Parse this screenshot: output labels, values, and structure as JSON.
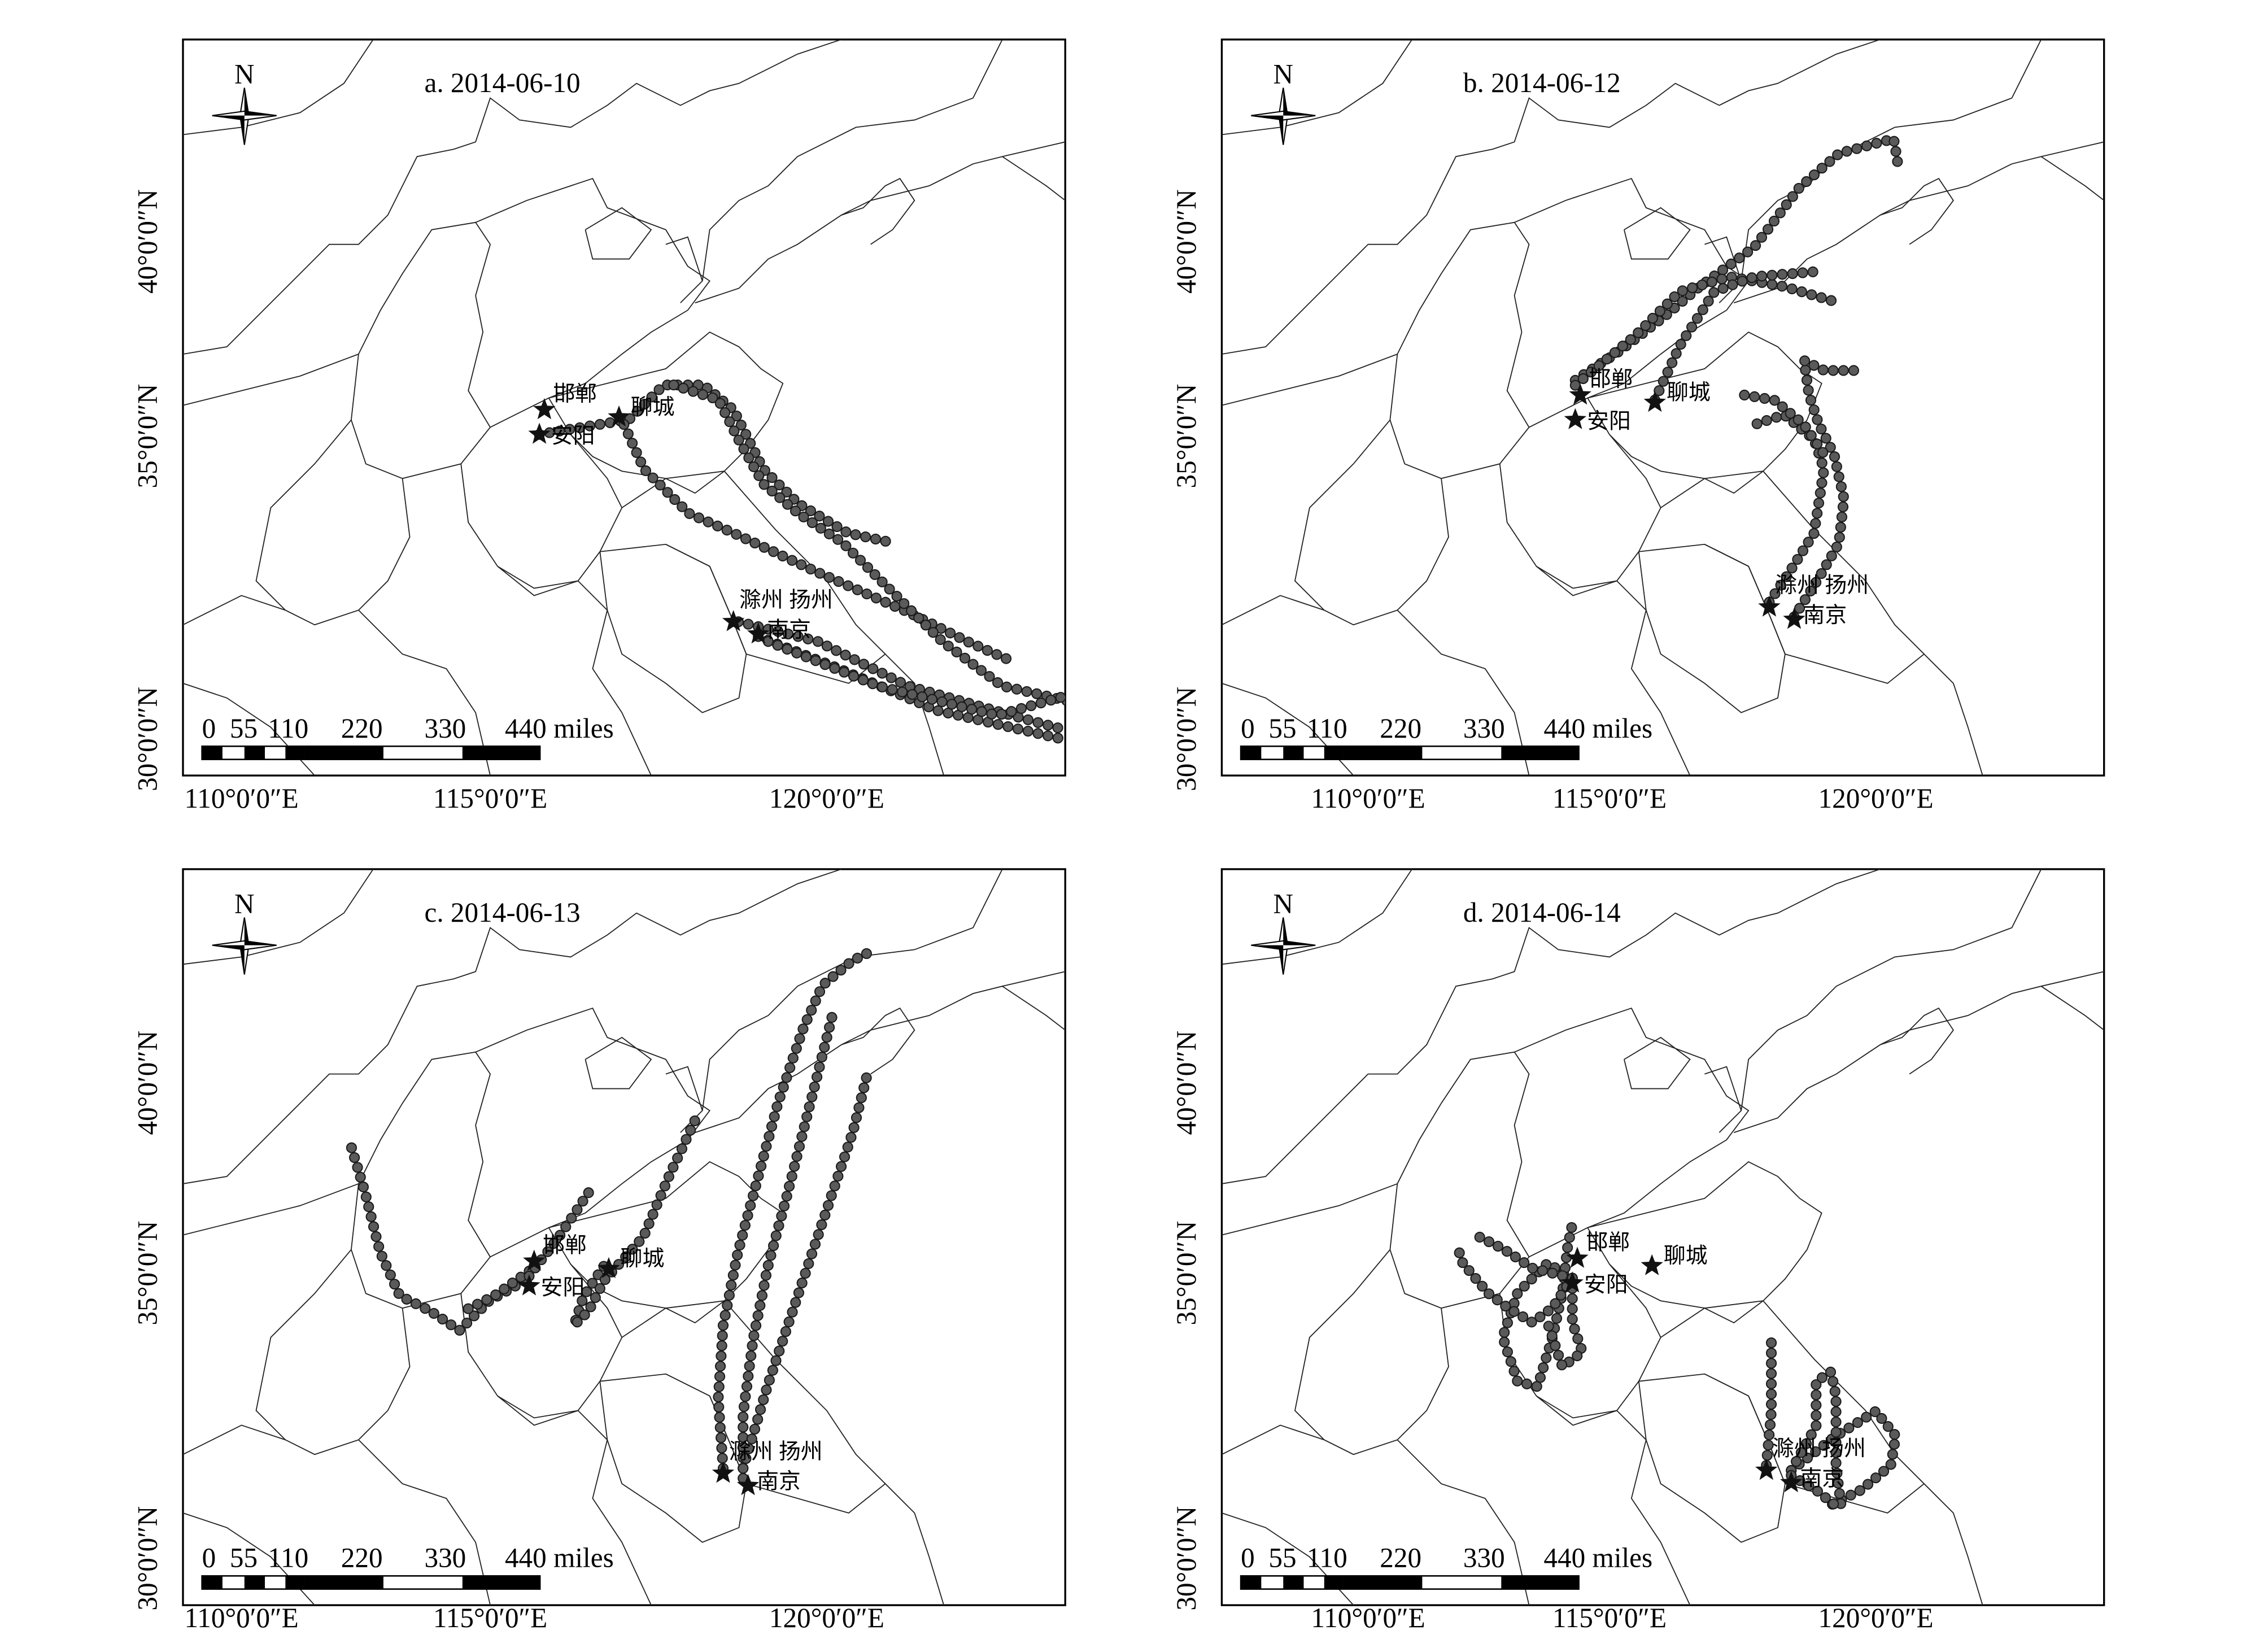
{
  "north_label": "N",
  "scale_bar": {
    "labels": [
      "0",
      "55",
      "110",
      "220",
      "330",
      "440 miles"
    ]
  },
  "axes": {
    "lat_labels": [
      "40°0′0″N",
      "35°0′0″N",
      "30°0′0″N"
    ],
    "lon_labels": [
      "110°0′0″E",
      "115°0′0″E",
      "120°0′0″E"
    ]
  },
  "cities": [
    {
      "name": "邯郸",
      "lon": 114.5,
      "lat": 36.6,
      "star": true
    },
    {
      "name": "安阳",
      "lon": 114.4,
      "lat": 36.1,
      "star": true
    },
    {
      "name": "聊城",
      "lon": 116.0,
      "lat": 36.45,
      "star": true
    },
    {
      "name": "滁州",
      "lon": 118.3,
      "lat": 32.3,
      "star": true
    },
    {
      "name": "南京",
      "lon": 118.8,
      "lat": 32.05,
      "star": true
    },
    {
      "name": "扬州",
      "lon": 119.4,
      "lat": 32.4,
      "star": false
    }
  ],
  "marker_colors": {
    "trajectory_point": "#5a5a5a",
    "star": "#111111"
  },
  "panels": [
    {
      "title": "a. 2014-06-10",
      "trajectories": [
        [
          [
            114.4,
            36.1
          ],
          [
            116.2,
            36.4
          ],
          [
            116.9,
            37.1
          ],
          [
            117.7,
            37.1
          ],
          [
            118.3,
            36.6
          ],
          [
            118.9,
            35.4
          ],
          [
            119.6,
            34.7
          ],
          [
            120.6,
            34.1
          ],
          [
            121.5,
            33.9
          ]
        ],
        [
          [
            116.1,
            36.3
          ],
          [
            116.5,
            35.4
          ],
          [
            117.4,
            34.5
          ],
          [
            118.3,
            34.1
          ],
          [
            120.0,
            33.3
          ],
          [
            121.8,
            32.5
          ],
          [
            123.0,
            31.9
          ],
          [
            123.9,
            31.5
          ]
        ],
        [
          [
            117.1,
            37.1
          ],
          [
            118.0,
            36.8
          ],
          [
            118.4,
            36.0
          ],
          [
            118.9,
            35.1
          ],
          [
            119.6,
            34.5
          ],
          [
            120.5,
            33.9
          ],
          [
            121.4,
            33.0
          ],
          [
            122.5,
            31.9
          ],
          [
            123.7,
            31.0
          ],
          [
            125.0,
            30.7
          ]
        ],
        [
          [
            118.4,
            32.3
          ],
          [
            120.0,
            31.9
          ],
          [
            121.8,
            31.0
          ],
          [
            123.9,
            30.4
          ],
          [
            125.0,
            30.1
          ]
        ],
        [
          [
            118.8,
            32.0
          ],
          [
            120.3,
            31.4
          ],
          [
            122.4,
            30.5
          ],
          [
            125.0,
            29.9
          ]
        ],
        [
          [
            119.0,
            31.9
          ],
          [
            121.2,
            31.0
          ],
          [
            123.6,
            30.4
          ],
          [
            125.0,
            30.8
          ]
        ]
      ]
    },
    {
      "title": "b. 2014-06-12",
      "trajectories": [
        [
          [
            114.4,
            36.9
          ],
          [
            115.3,
            37.5
          ],
          [
            116.2,
            38.2
          ],
          [
            116.9,
            38.8
          ],
          [
            118.0,
            39.6
          ],
          [
            118.9,
            40.8
          ],
          [
            119.7,
            41.5
          ],
          [
            120.8,
            41.8
          ],
          [
            120.9,
            41.2
          ]
        ],
        [
          [
            114.4,
            36.8
          ],
          [
            115.6,
            37.8
          ],
          [
            116.5,
            38.7
          ],
          [
            117.5,
            39.0
          ],
          [
            118.6,
            38.8
          ],
          [
            119.6,
            38.5
          ]
        ],
        [
          [
            116.0,
            36.5
          ],
          [
            116.5,
            37.6
          ],
          [
            117.2,
            38.7
          ],
          [
            118.0,
            39.0
          ],
          [
            119.2,
            39.1
          ]
        ],
        [
          [
            118.8,
            32.1
          ],
          [
            119.3,
            32.9
          ],
          [
            119.7,
            33.6
          ],
          [
            119.8,
            34.5
          ],
          [
            119.6,
            35.4
          ],
          [
            119.3,
            36.0
          ],
          [
            119.1,
            36.6
          ],
          [
            119.0,
            37.3
          ],
          [
            119.4,
            37.1
          ],
          [
            120.0,
            37.1
          ]
        ],
        [
          [
            118.3,
            32.4
          ],
          [
            118.7,
            33.0
          ],
          [
            119.2,
            33.8
          ],
          [
            119.4,
            35.1
          ],
          [
            119.2,
            35.7
          ],
          [
            118.6,
            36.2
          ],
          [
            118.0,
            36.0
          ],
          [
            118.1,
            35.9
          ]
        ],
        [
          [
            117.8,
            36.6
          ],
          [
            118.4,
            36.5
          ],
          [
            119.0,
            36.0
          ],
          [
            119.4,
            35.4
          ]
        ]
      ]
    },
    {
      "title": "c. 2014-06-13",
      "trajectories": [
        [
          [
            114.3,
            36.2
          ],
          [
            113.6,
            35.8
          ],
          [
            113.0,
            35.2
          ],
          [
            112.4,
            35.6
          ],
          [
            111.8,
            35.9
          ],
          [
            111.4,
            36.8
          ],
          [
            111.1,
            38.0
          ],
          [
            110.8,
            39.0
          ]
        ],
        [
          [
            114.4,
            36.4
          ],
          [
            113.7,
            35.9
          ],
          [
            113.1,
            35.6
          ]
        ],
        [
          [
            114.4,
            36.3
          ],
          [
            115.0,
            37.1
          ],
          [
            115.6,
            38.0
          ]
        ],
        [
          [
            115.9,
            36.5
          ],
          [
            115.5,
            35.9
          ],
          [
            115.3,
            35.3
          ],
          [
            115.6,
            35.6
          ],
          [
            115.9,
            36.2
          ],
          [
            116.7,
            37.1
          ],
          [
            117.2,
            38.3
          ],
          [
            117.8,
            39.6
          ]
        ],
        [
          [
            118.3,
            32.4
          ],
          [
            118.2,
            33.8
          ],
          [
            118.3,
            35.3
          ],
          [
            118.6,
            36.8
          ],
          [
            119.0,
            38.3
          ],
          [
            119.4,
            39.8
          ],
          [
            119.9,
            41.3
          ],
          [
            120.3,
            42.2
          ],
          [
            120.9,
            42.7
          ],
          [
            121.3,
            42.9
          ]
        ],
        [
          [
            118.7,
            32.2
          ],
          [
            118.7,
            33.5
          ],
          [
            118.9,
            35.0
          ],
          [
            119.2,
            36.5
          ],
          [
            119.6,
            38.0
          ],
          [
            119.9,
            39.2
          ],
          [
            120.2,
            40.4
          ],
          [
            120.5,
            41.6
          ]
        ],
        [
          [
            118.7,
            32.4
          ],
          [
            119.2,
            34.1
          ],
          [
            119.9,
            36.2
          ],
          [
            120.5,
            38.0
          ],
          [
            120.9,
            39.2
          ],
          [
            121.2,
            40.4
          ]
        ]
      ]
    },
    {
      "title": "d. 2014-06-14",
      "trajectories": [
        [
          [
            114.4,
            36.2
          ],
          [
            113.9,
            36.5
          ],
          [
            113.3,
            35.9
          ],
          [
            113.0,
            35.0
          ],
          [
            113.3,
            34.1
          ],
          [
            113.7,
            34.0
          ],
          [
            114.0,
            35.0
          ],
          [
            114.2,
            35.9
          ],
          [
            114.3,
            36.8
          ],
          [
            114.4,
            37.3
          ]
        ],
        [
          [
            114.4,
            36.2
          ],
          [
            113.6,
            36.4
          ],
          [
            113.0,
            36.8
          ],
          [
            112.4,
            37.1
          ]
        ],
        [
          [
            114.4,
            36.2
          ],
          [
            114.0,
            35.6
          ],
          [
            113.6,
            35.3
          ],
          [
            113.1,
            35.6
          ],
          [
            112.7,
            35.9
          ],
          [
            112.2,
            36.5
          ],
          [
            112.1,
            36.8
          ]
        ],
        [
          [
            114.4,
            36.2
          ],
          [
            114.4,
            35.3
          ],
          [
            114.6,
            34.7
          ],
          [
            114.2,
            34.4
          ],
          [
            113.9,
            35.3
          ]
        ],
        [
          [
            118.3,
            32.4
          ],
          [
            118.4,
            33.5
          ],
          [
            118.4,
            35.0
          ]
        ],
        [
          [
            118.8,
            32.3
          ],
          [
            119.7,
            33.0
          ],
          [
            120.5,
            33.5
          ],
          [
            120.9,
            33.0
          ],
          [
            120.8,
            32.4
          ],
          [
            120.2,
            31.9
          ],
          [
            119.6,
            31.6
          ]
        ],
        [
          [
            118.8,
            32.3
          ],
          [
            119.3,
            33.2
          ],
          [
            119.3,
            34.1
          ],
          [
            119.6,
            34.3
          ],
          [
            119.7,
            33.8
          ],
          [
            119.7,
            32.4
          ],
          [
            119.8,
            31.6
          ]
        ],
        [
          [
            118.8,
            32.2
          ],
          [
            119.3,
            31.9
          ],
          [
            119.8,
            31.5
          ]
        ]
      ]
    }
  ]
}
